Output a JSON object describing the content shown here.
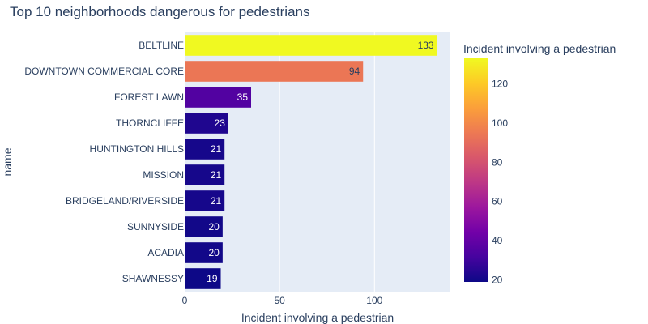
{
  "chart_data": {
    "type": "bar",
    "orientation": "horizontal",
    "title": "Top 10 neighborhoods dangerous for pedestrians",
    "xlabel": "Incident involving a pedestrian",
    "ylabel": "name",
    "categories": [
      "BELTLINE",
      "DOWNTOWN COMMERCIAL CORE",
      "FOREST LAWN",
      "THORNCLIFFE",
      "HUNTINGTON HILLS",
      "MISSION",
      "BRIDGELAND/RIVERSIDE",
      "SUNNYSIDE",
      "ACADIA",
      "SHAWNESSY"
    ],
    "values": [
      133,
      94,
      35,
      23,
      21,
      21,
      21,
      20,
      20,
      19
    ],
    "xlim": [
      0,
      140
    ],
    "xticks": [
      "0",
      "50",
      "100"
    ],
    "xtick_values": [
      0,
      50,
      100
    ],
    "grid": true,
    "colorscale": "plasma",
    "colorbar": {
      "title": "Incident involving a pedestrian",
      "range": [
        19,
        133
      ],
      "ticks": [
        "20",
        "40",
        "60",
        "80",
        "100",
        "120"
      ],
      "tick_values": [
        20,
        40,
        60,
        80,
        100,
        120
      ]
    },
    "colors": {
      "plot_bg": "#e5ecf6",
      "grid": "#ffffff",
      "text": "#2a3f5f"
    }
  }
}
